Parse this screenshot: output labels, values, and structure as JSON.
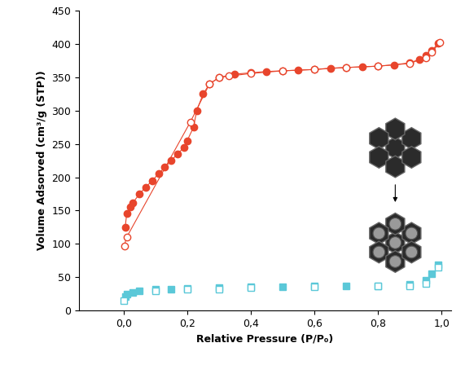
{
  "chart_data": {
    "type": "scatter",
    "x_label": "Relative Pressure (P/P₀)",
    "y_label": "Volume Adsorved (cm³/g (STP))",
    "xlim": [
      -0.14,
      1.03
    ],
    "xticks": [
      {
        "value": 0.0,
        "label": "0,0"
      },
      {
        "value": 0.2,
        "label": "0,2"
      },
      {
        "value": 0.4,
        "label": "0,4"
      },
      {
        "value": 0.6,
        "label": "0,6"
      },
      {
        "value": 0.8,
        "label": "0,8"
      },
      {
        "value": 1.0,
        "label": "1,0"
      }
    ],
    "ylim": [
      0,
      450
    ],
    "yticks": [
      0,
      50,
      100,
      150,
      200,
      250,
      300,
      350,
      400,
      450
    ],
    "grid": false,
    "series": [
      {
        "color": "#e8452c",
        "marker": "circle",
        "line_style": "solid",
        "x": [
          0.005,
          0.01,
          0.02,
          0.03,
          0.05,
          0.07,
          0.09,
          0.11,
          0.13,
          0.15,
          0.17,
          0.19,
          0.2,
          0.22,
          0.23,
          0.25,
          0.27,
          0.3,
          0.35,
          0.4,
          0.45,
          0.5,
          0.55,
          0.6,
          0.65,
          0.7,
          0.75,
          0.8,
          0.85,
          0.9,
          0.93,
          0.95,
          0.97,
          0.99
        ],
        "values": [
          125,
          145,
          155,
          162,
          175,
          185,
          195,
          205,
          215,
          225,
          235,
          245,
          255,
          275,
          300,
          325,
          340,
          350,
          355,
          357,
          359,
          360,
          361,
          362,
          364,
          365,
          366,
          367,
          369,
          372,
          377,
          383,
          390,
          402
        ]
      },
      {
        "color": "#e8452c",
        "marker": "open_circle",
        "line_style": "solid",
        "x": [
          0.995,
          0.97,
          0.95,
          0.9,
          0.8,
          0.7,
          0.6,
          0.5,
          0.4,
          0.33,
          0.3,
          0.27,
          0.21,
          0.01,
          0.002
        ],
        "values": [
          403,
          388,
          380,
          371,
          367,
          365,
          362,
          360,
          356,
          352,
          350,
          340,
          283,
          110,
          97
        ]
      },
      {
        "color": "#5bc8d8",
        "marker": "square",
        "line_style": "none",
        "x": [
          0.005,
          0.01,
          0.03,
          0.05,
          0.1,
          0.15,
          0.2,
          0.3,
          0.4,
          0.5,
          0.6,
          0.7,
          0.8,
          0.9,
          0.95,
          0.97,
          0.99
        ],
        "values": [
          20,
          24,
          27,
          29,
          31,
          32,
          33,
          34,
          35,
          35,
          36,
          36,
          37,
          39,
          45,
          55,
          68
        ]
      },
      {
        "color": "#5bc8d8",
        "marker": "open_square",
        "line_style": "none",
        "x": [
          0.99,
          0.95,
          0.9,
          0.8,
          0.6,
          0.4,
          0.3,
          0.2,
          0.1,
          0.0
        ],
        "values": [
          65,
          40,
          37,
          36,
          35,
          34,
          32,
          31,
          29,
          14
        ]
      }
    ]
  }
}
